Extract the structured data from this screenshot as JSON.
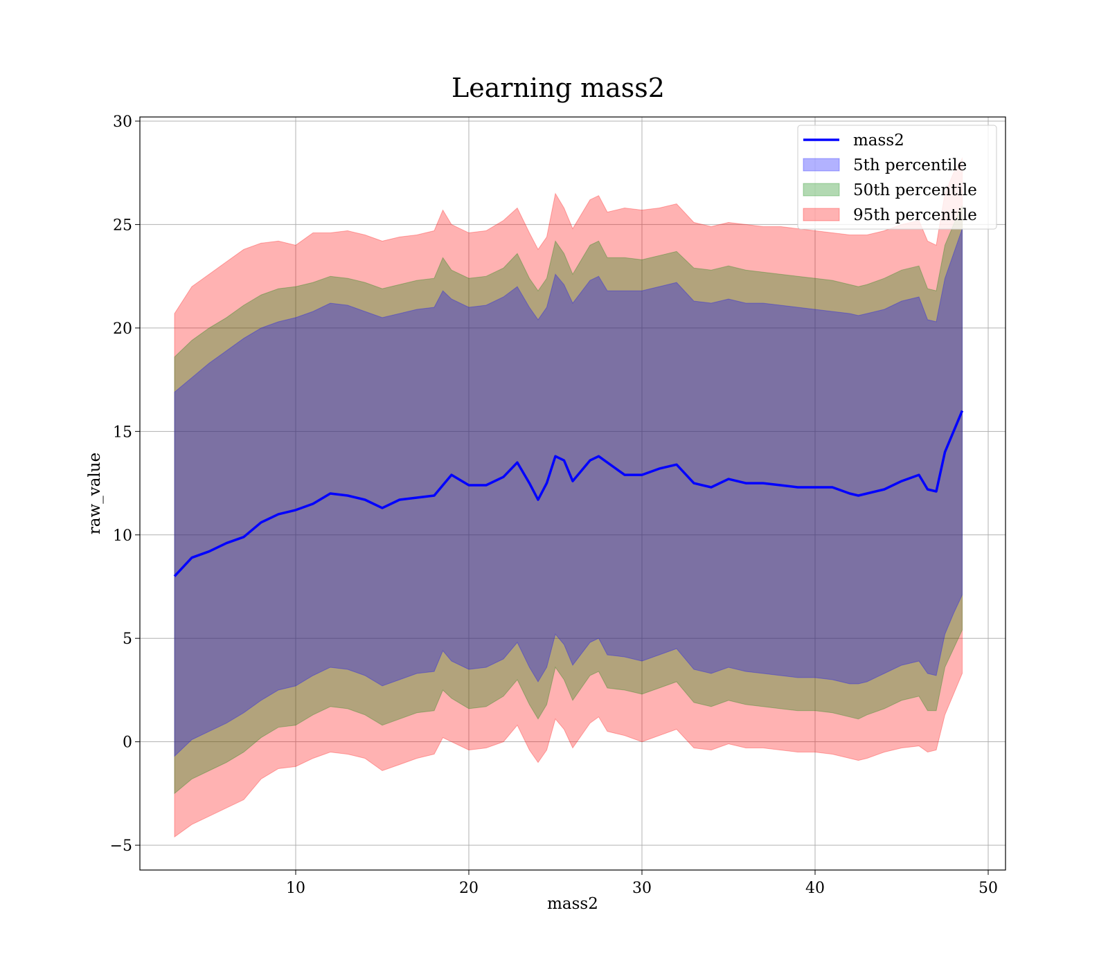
{
  "chart_data": {
    "type": "line",
    "title": "Learning mass2",
    "xlabel": "mass2",
    "ylabel": "raw_value",
    "xlim": [
      1,
      51
    ],
    "ylim": [
      -6.2,
      30.2
    ],
    "xticks": [
      10,
      20,
      30,
      40,
      50
    ],
    "xtick_labels": [
      "10",
      "20",
      "30",
      "40",
      "50"
    ],
    "yticks": [
      -5,
      0,
      5,
      10,
      15,
      20,
      25,
      30
    ],
    "ytick_labels": [
      "−5",
      "0",
      "5",
      "10",
      "15",
      "20",
      "25",
      "30"
    ],
    "grid": true,
    "legend_position": "top-right",
    "x": [
      3,
      4,
      5,
      6,
      7,
      8,
      9,
      10,
      11,
      12,
      13,
      14,
      15,
      16,
      17,
      18,
      18.5,
      19,
      20,
      21,
      22,
      22.8,
      23.5,
      24,
      24.5,
      25,
      25.5,
      26,
      27,
      27.5,
      28,
      29,
      30,
      31,
      32,
      33,
      34,
      35,
      36,
      37,
      38,
      39,
      40,
      41,
      42,
      42.5,
      43,
      44,
      45,
      46,
      46.5,
      47,
      47.5,
      48,
      48.5
    ],
    "series": [
      {
        "name": "mass2",
        "color": "#0000ff",
        "values": [
          8.0,
          8.9,
          9.2,
          9.6,
          9.9,
          10.6,
          11.0,
          11.2,
          11.5,
          12.0,
          11.9,
          11.7,
          11.3,
          11.7,
          11.8,
          11.9,
          12.4,
          12.9,
          12.4,
          12.4,
          12.8,
          13.5,
          12.5,
          11.7,
          12.5,
          13.8,
          13.6,
          12.6,
          13.6,
          13.8,
          13.5,
          12.9,
          12.9,
          13.2,
          13.4,
          12.5,
          12.3,
          12.7,
          12.5,
          12.5,
          12.4,
          12.3,
          12.3,
          12.3,
          12.0,
          11.9,
          12.0,
          12.2,
          12.6,
          12.9,
          12.2,
          12.1,
          14.0,
          15.0,
          16.0
        ]
      }
    ],
    "bands": [
      {
        "name": "95th percentile",
        "color": "#ff0000",
        "opacity": 0.3,
        "upper": [
          20.7,
          22.0,
          22.6,
          23.2,
          23.8,
          24.1,
          24.2,
          24.0,
          24.6,
          24.6,
          24.7,
          24.5,
          24.2,
          24.4,
          24.5,
          24.7,
          25.7,
          25.0,
          24.6,
          24.7,
          25.2,
          25.8,
          24.6,
          23.8,
          24.4,
          26.5,
          25.8,
          24.8,
          26.2,
          26.4,
          25.6,
          25.8,
          25.7,
          25.8,
          26.0,
          25.1,
          24.9,
          25.1,
          25.0,
          24.9,
          24.9,
          24.8,
          24.7,
          24.6,
          24.5,
          24.5,
          24.5,
          24.7,
          25.0,
          25.2,
          24.2,
          24.0,
          26.5,
          27.5,
          28.2
        ],
        "lower": [
          -4.6,
          -4.0,
          -3.6,
          -3.2,
          -2.8,
          -1.8,
          -1.3,
          -1.2,
          -0.8,
          -0.5,
          -0.6,
          -0.8,
          -1.4,
          -1.1,
          -0.8,
          -0.6,
          0.2,
          0.0,
          -0.4,
          -0.3,
          0.0,
          0.8,
          -0.4,
          -1.0,
          -0.4,
          1.1,
          0.6,
          -0.3,
          0.9,
          1.2,
          0.5,
          0.3,
          0.0,
          0.3,
          0.6,
          -0.3,
          -0.4,
          -0.1,
          -0.3,
          -0.3,
          -0.4,
          -0.5,
          -0.5,
          -0.6,
          -0.8,
          -0.9,
          -0.8,
          -0.5,
          -0.3,
          -0.2,
          -0.5,
          -0.4,
          1.3,
          2.3,
          3.3
        ]
      },
      {
        "name": "50th percentile",
        "color": "#008000",
        "opacity": 0.3,
        "upper": [
          18.6,
          19.4,
          20.0,
          20.5,
          21.1,
          21.6,
          21.9,
          22.0,
          22.2,
          22.5,
          22.4,
          22.2,
          21.9,
          22.1,
          22.3,
          22.4,
          23.4,
          22.8,
          22.4,
          22.5,
          22.9,
          23.6,
          22.4,
          21.8,
          22.4,
          24.2,
          23.6,
          22.6,
          24.0,
          24.2,
          23.4,
          23.4,
          23.3,
          23.5,
          23.7,
          22.9,
          22.8,
          23.0,
          22.8,
          22.7,
          22.6,
          22.5,
          22.4,
          22.3,
          22.1,
          22.0,
          22.1,
          22.4,
          22.8,
          23.0,
          21.9,
          21.8,
          24.0,
          25.0,
          25.9
        ],
        "lower": [
          -2.5,
          -1.8,
          -1.4,
          -1.0,
          -0.5,
          0.2,
          0.7,
          0.8,
          1.3,
          1.7,
          1.6,
          1.3,
          0.8,
          1.1,
          1.4,
          1.5,
          2.5,
          2.1,
          1.6,
          1.7,
          2.2,
          3.0,
          1.8,
          1.1,
          1.8,
          3.6,
          3.0,
          2.0,
          3.2,
          3.4,
          2.6,
          2.5,
          2.3,
          2.6,
          2.9,
          1.9,
          1.7,
          2.0,
          1.8,
          1.7,
          1.6,
          1.5,
          1.5,
          1.4,
          1.2,
          1.1,
          1.3,
          1.6,
          2.0,
          2.2,
          1.5,
          1.5,
          3.6,
          4.5,
          5.4
        ]
      },
      {
        "name": "5th percentile",
        "color": "#0000ff",
        "opacity": 0.3,
        "upper": [
          16.9,
          17.6,
          18.3,
          18.9,
          19.5,
          20.0,
          20.3,
          20.5,
          20.8,
          21.2,
          21.1,
          20.8,
          20.5,
          20.7,
          20.9,
          21.0,
          21.8,
          21.4,
          21.0,
          21.1,
          21.5,
          22.0,
          21.0,
          20.4,
          21.0,
          22.6,
          22.1,
          21.2,
          22.3,
          22.5,
          21.8,
          21.8,
          21.8,
          22.0,
          22.2,
          21.3,
          21.2,
          21.4,
          21.2,
          21.2,
          21.1,
          21.0,
          20.9,
          20.8,
          20.7,
          20.6,
          20.7,
          20.9,
          21.3,
          21.5,
          20.4,
          20.3,
          22.4,
          23.6,
          24.8
        ],
        "lower": [
          -0.7,
          0.1,
          0.5,
          0.9,
          1.4,
          2.0,
          2.5,
          2.7,
          3.2,
          3.6,
          3.5,
          3.2,
          2.7,
          3.0,
          3.3,
          3.4,
          4.4,
          3.9,
          3.5,
          3.6,
          4.0,
          4.8,
          3.6,
          2.9,
          3.6,
          5.2,
          4.7,
          3.7,
          4.8,
          5.0,
          4.2,
          4.1,
          3.9,
          4.2,
          4.5,
          3.5,
          3.3,
          3.6,
          3.4,
          3.3,
          3.2,
          3.1,
          3.1,
          3.0,
          2.8,
          2.8,
          2.9,
          3.3,
          3.7,
          3.9,
          3.3,
          3.2,
          5.2,
          6.2,
          7.1
        ]
      }
    ],
    "legend": [
      {
        "label": "mass2",
        "kind": "line",
        "color": "#0000ff"
      },
      {
        "label": "5th percentile",
        "kind": "patch",
        "color": "#0000ff"
      },
      {
        "label": "50th percentile",
        "kind": "patch",
        "color": "#008000"
      },
      {
        "label": "95th percentile",
        "kind": "patch",
        "color": "#ff0000"
      }
    ]
  }
}
